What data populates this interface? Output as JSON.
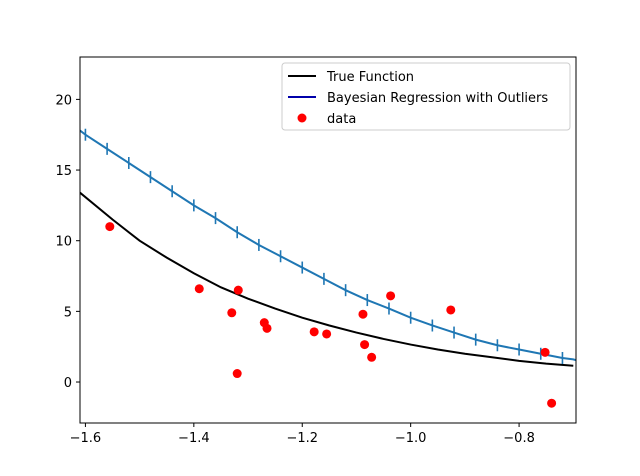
{
  "chart_data": {
    "type": "line",
    "title": "",
    "xlabel": "",
    "ylabel": "",
    "xlim": [
      -1.61,
      -0.695
    ],
    "ylim": [
      -2.9,
      23.0
    ],
    "x_ticks": [
      -1.6,
      -1.4,
      -1.2,
      -1.0,
      -0.8
    ],
    "x_tick_labels": [
      "−1.6",
      "−1.4",
      "−1.2",
      "−1.0",
      "−0.8"
    ],
    "y_ticks": [
      0,
      5,
      10,
      15,
      20
    ],
    "y_tick_labels": [
      "0",
      "5",
      "10",
      "15",
      "20"
    ],
    "grid": false,
    "legend_position": "upper-right",
    "series": [
      {
        "name": "True Function",
        "kind": "line",
        "color": "#000000",
        "x": [
          -1.61,
          -1.55,
          -1.5,
          -1.45,
          -1.4,
          -1.35,
          -1.3,
          -1.25,
          -1.2,
          -1.15,
          -1.1,
          -1.05,
          -1.0,
          -0.95,
          -0.9,
          -0.85,
          -0.8,
          -0.75,
          -0.7
        ],
        "y": [
          13.4,
          11.5,
          10.0,
          8.8,
          7.7,
          6.7,
          5.9,
          5.2,
          4.55,
          4.0,
          3.5,
          3.05,
          2.65,
          2.3,
          2.0,
          1.75,
          1.5,
          1.3,
          1.15
        ]
      },
      {
        "name": "Bayesian Regression with Outliers",
        "kind": "line",
        "color": "#1f77b4",
        "legend_color": "#0000aa",
        "error_ticks": true,
        "x": [
          -1.61,
          -1.6,
          -1.56,
          -1.52,
          -1.48,
          -1.44,
          -1.4,
          -1.36,
          -1.32,
          -1.28,
          -1.24,
          -1.2,
          -1.16,
          -1.12,
          -1.08,
          -1.04,
          -1.0,
          -0.96,
          -0.92,
          -0.88,
          -0.84,
          -0.8,
          -0.76,
          -0.72,
          -0.7,
          -0.695
        ],
        "y": [
          17.8,
          17.5,
          16.5,
          15.5,
          14.5,
          13.5,
          12.5,
          11.6,
          10.6,
          9.7,
          8.9,
          8.1,
          7.3,
          6.5,
          5.8,
          5.2,
          4.55,
          4.0,
          3.5,
          3.0,
          2.6,
          2.3,
          2.0,
          1.7,
          1.6,
          1.55
        ],
        "tick_x": [
          -1.6,
          -1.56,
          -1.52,
          -1.48,
          -1.44,
          -1.4,
          -1.36,
          -1.32,
          -1.28,
          -1.24,
          -1.2,
          -1.16,
          -1.12,
          -1.08,
          -1.04,
          -1.0,
          -0.96,
          -0.92,
          -0.88,
          -0.84,
          -0.8,
          -0.76,
          -0.72
        ]
      },
      {
        "name": "data",
        "kind": "scatter",
        "color": "#ff0000",
        "x": [
          -1.555,
          -1.39,
          -1.33,
          -1.32,
          -1.318,
          -1.27,
          -1.265,
          -1.178,
          -1.155,
          -1.088,
          -1.085,
          -1.072,
          -1.037,
          -0.926,
          -0.752,
          -0.74
        ],
        "y": [
          11.0,
          6.6,
          4.9,
          0.6,
          6.5,
          4.2,
          3.8,
          3.55,
          3.4,
          4.8,
          2.65,
          1.75,
          6.1,
          5.1,
          2.1,
          -1.5
        ]
      }
    ]
  }
}
